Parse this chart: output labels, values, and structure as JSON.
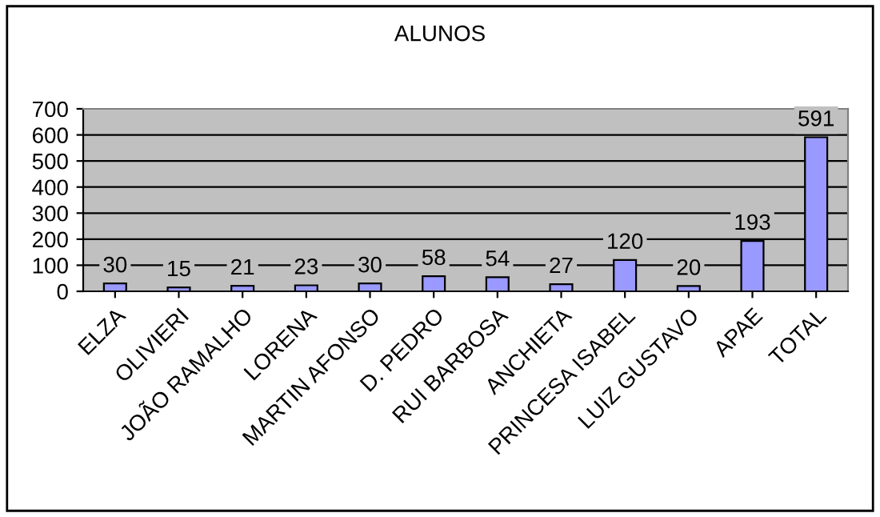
{
  "chart_data": {
    "type": "bar",
    "title": "ALUNOS",
    "categories": [
      "ELZA",
      "OLIVIERI",
      "JOÃO RAMALHO",
      "LORENA",
      "MARTIN AFONSO",
      "D. PEDRO",
      "RUI BARBOSA",
      "ANCHIETA",
      "PRINCESA ISABEL",
      "LUIZ GUSTAVO",
      "APAE",
      "TOTAL"
    ],
    "values": [
      30,
      15,
      21,
      23,
      30,
      58,
      54,
      27,
      120,
      20,
      193,
      591
    ],
    "color": "#9999ff",
    "ylim": [
      0,
      700
    ],
    "yticks": [
      0,
      100,
      200,
      300,
      400,
      500,
      600,
      700
    ],
    "grid": "y",
    "data_labels": true,
    "legend": false
  }
}
